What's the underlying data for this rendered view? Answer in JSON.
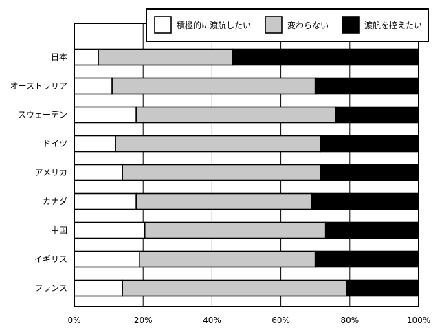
{
  "chart_data": {
    "type": "bar",
    "orientation": "horizontal",
    "stacked": "percent",
    "categories": [
      "日本",
      "オーストラリア",
      "スウェーデン",
      "ドイツ",
      "アメリカ",
      "カナダ",
      "中国",
      "イギリス",
      "フランス"
    ],
    "series": [
      {
        "name": "積極的に渡航したい",
        "color": "#ffffff",
        "values": [
          7,
          11,
          18,
          12,
          14,
          18,
          20.5,
          19,
          14
        ]
      },
      {
        "name": "変わらない",
        "color": "#c8c8c8",
        "values": [
          39,
          59,
          58,
          59.5,
          57.5,
          51,
          52.5,
          51,
          65
        ]
      },
      {
        "name": "渡航を控えたい",
        "color": "#000000",
        "values": [
          54,
          30,
          24,
          28.5,
          28.5,
          31,
          27,
          30,
          21
        ]
      }
    ],
    "xlim": [
      0,
      100
    ],
    "xticks": [
      "0%",
      "20%",
      "40%",
      "60%",
      "80%",
      "100%"
    ],
    "xtick_values": [
      0,
      20,
      40,
      60,
      80,
      100
    ],
    "grid": "vertical",
    "legend_position": "top-right",
    "title": "",
    "xlabel": "",
    "ylabel": ""
  }
}
